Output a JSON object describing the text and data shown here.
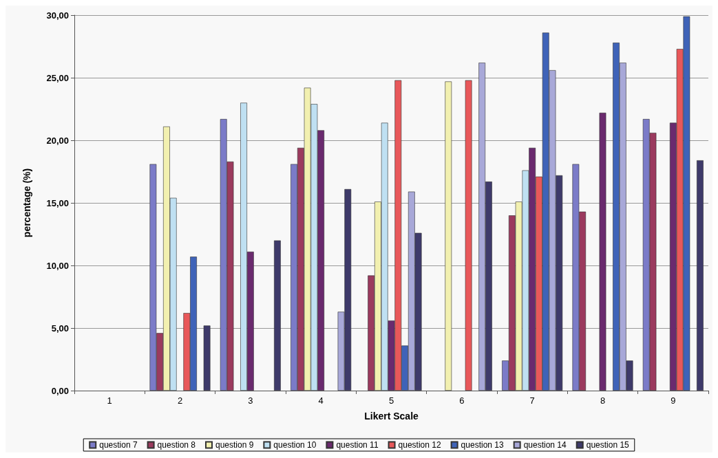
{
  "chart_data": {
    "type": "bar",
    "xlabel": "Likert Scale",
    "ylabel": "percentage (%)",
    "categories": [
      "1",
      "2",
      "3",
      "4",
      "5",
      "6",
      "7",
      "8",
      "9"
    ],
    "series": [
      {
        "name": "question 7",
        "color": "#7b7bc8",
        "values": [
          0,
          18.1,
          21.7,
          18.1,
          0,
          0,
          2.4,
          18.1,
          21.7
        ]
      },
      {
        "name": "question 8",
        "color": "#9b3a5e",
        "values": [
          0,
          4.6,
          18.3,
          19.4,
          9.2,
          0,
          14.0,
          14.3,
          20.6
        ]
      },
      {
        "name": "question 9",
        "color": "#f2f0b0",
        "values": [
          0,
          21.1,
          0,
          24.2,
          15.1,
          24.7,
          15.1,
          0,
          0
        ]
      },
      {
        "name": "question 10",
        "color": "#bfe0f2",
        "values": [
          0,
          15.4,
          23.0,
          22.9,
          21.4,
          0,
          17.6,
          0,
          0
        ]
      },
      {
        "name": "question 11",
        "color": "#6a2a6e",
        "values": [
          0,
          0,
          11.1,
          20.8,
          5.6,
          0,
          19.4,
          22.2,
          21.4
        ]
      },
      {
        "name": "question 12",
        "color": "#e8585a",
        "values": [
          0,
          6.2,
          0,
          0,
          24.8,
          24.8,
          17.1,
          0,
          27.3
        ]
      },
      {
        "name": "question 13",
        "color": "#3f63b8",
        "values": [
          0,
          10.7,
          0,
          0,
          3.6,
          0,
          28.6,
          27.8,
          29.9
        ]
      },
      {
        "name": "question 14",
        "color": "#a8a8d8",
        "values": [
          0,
          0,
          0,
          6.3,
          15.9,
          26.2,
          25.6,
          26.2,
          0
        ]
      },
      {
        "name": "question 15",
        "color": "#3e3a6a",
        "values": [
          0,
          5.2,
          12.0,
          16.1,
          12.6,
          16.7,
          17.2,
          2.4,
          18.4
        ]
      }
    ],
    "ylim": [
      0,
      30
    ],
    "yticks": [
      {
        "value": 0,
        "label": "0,00"
      },
      {
        "value": 5,
        "label": "5,00"
      },
      {
        "value": 10,
        "label": "10,00"
      },
      {
        "value": 15,
        "label": "15,00"
      },
      {
        "value": 20,
        "label": "20,00"
      },
      {
        "value": 25,
        "label": "25,00"
      },
      {
        "value": 30,
        "label": "30,00"
      }
    ],
    "grid": "y",
    "legend": "bottom"
  }
}
